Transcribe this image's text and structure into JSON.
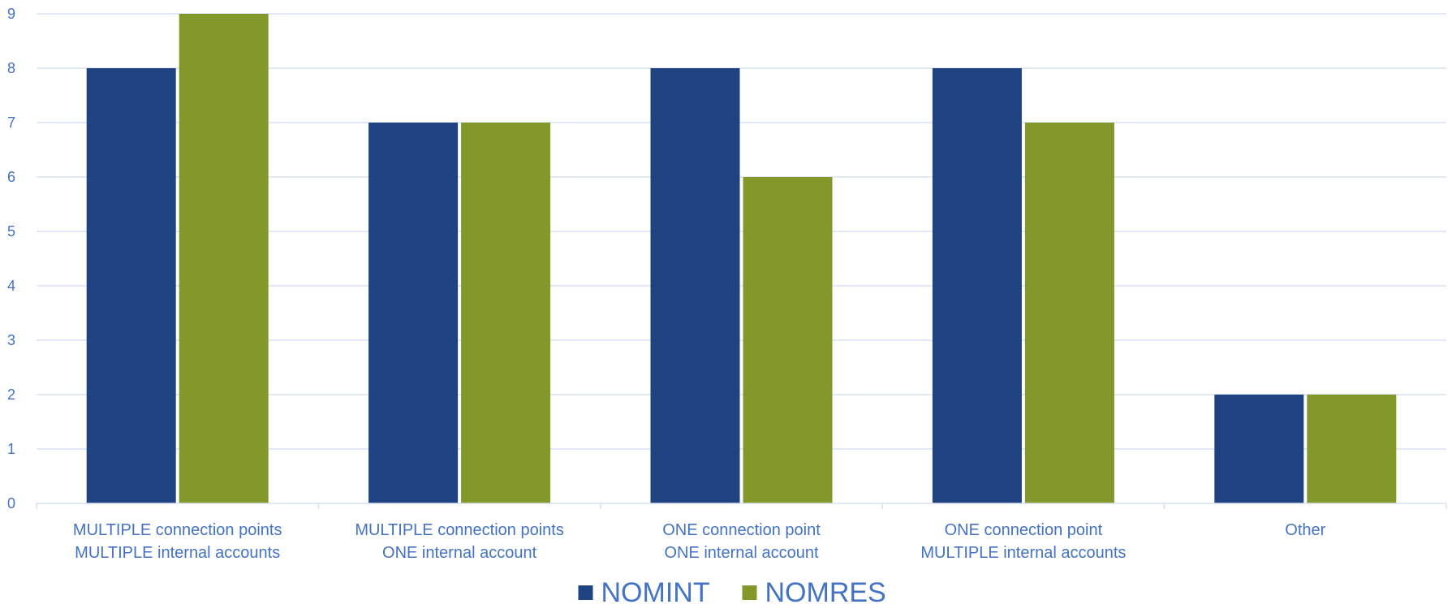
{
  "chart_data": {
    "type": "bar",
    "categories": [
      [
        "MULTIPLE connection points",
        "MULTIPLE internal accounts"
      ],
      [
        "MULTIPLE connection points",
        "ONE internal account"
      ],
      [
        "ONE connection point",
        "ONE internal account"
      ],
      [
        "ONE connection point",
        "MULTIPLE internal accounts"
      ],
      [
        "Other"
      ]
    ],
    "series": [
      {
        "name": "NOMINT",
        "values": [
          8,
          7,
          8,
          8,
          2
        ],
        "color": "#1f4380"
      },
      {
        "name": "NOMRES",
        "values": [
          9,
          7,
          6,
          7,
          2
        ],
        "color": "#82982a"
      }
    ],
    "ylim": [
      0,
      9
    ],
    "yticks": [
      "0",
      "1",
      "2",
      "3",
      "4",
      "5",
      "6",
      "7",
      "8",
      "9"
    ],
    "grid": true,
    "legend": "bottom-center",
    "title": "",
    "xlabel": "",
    "ylabel": ""
  }
}
